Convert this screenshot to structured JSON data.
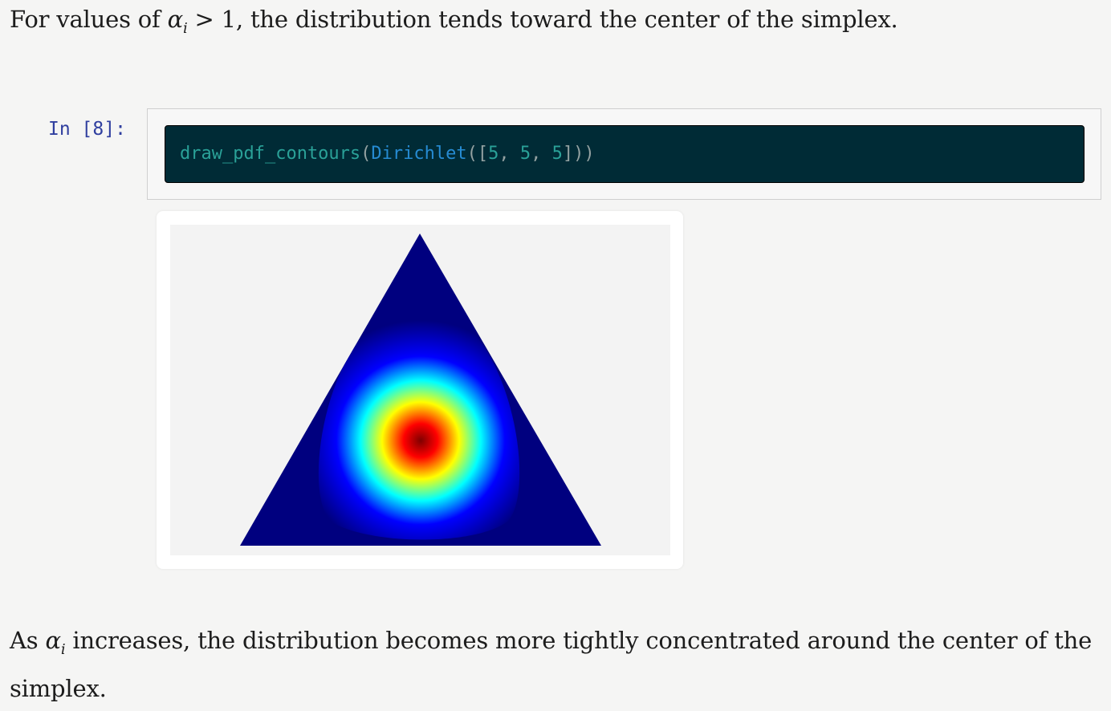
{
  "text": {
    "top": {
      "before": "For values of ",
      "alpha": "α",
      "sub": "i",
      "relation": " > 1",
      "after": ", the distribution tends toward the center of the simplex."
    },
    "bottom": {
      "before": "As ",
      "alpha": "α",
      "sub": "i",
      "after": " increases, the distribution becomes more tightly concentrated around the center of the simplex."
    }
  },
  "cell": {
    "prompt": "In [8]:",
    "code": {
      "fn": "draw_pdf_contours",
      "open1": "(",
      "cls": "Dirichlet",
      "open2": "([",
      "a1": "5",
      "sep1": ", ",
      "a2": "5",
      "sep2": ", ",
      "a3": "5",
      "close": "]))"
    }
  },
  "output": {
    "distribution": "Dirichlet",
    "alpha": [
      5,
      5,
      5
    ],
    "colormap": "jet",
    "colors": {
      "low": "#00007f",
      "mid1": "#0000ff",
      "mid2": "#00ffff",
      "mid3": "#ffff00",
      "high1": "#ff0000",
      "high2": "#7f0000"
    }
  },
  "theme": {
    "page_bg": "#f5f5f4",
    "code_bg": "#002b36",
    "prompt_color": "#303f9f"
  }
}
